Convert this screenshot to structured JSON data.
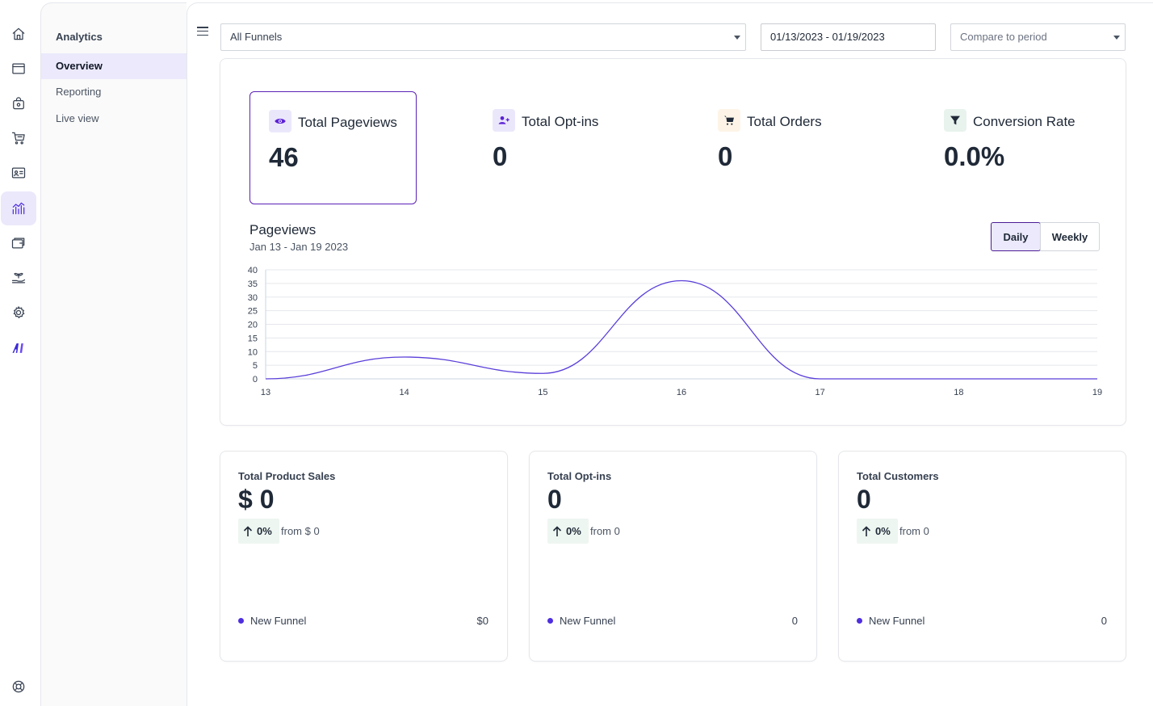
{
  "colors": {
    "accent": "#4f2ee0",
    "series": "#5b3fd9",
    "pill_bg": "#eef6f1"
  },
  "rail": {
    "items": [
      {
        "icon": "home-icon"
      },
      {
        "icon": "browser-icon"
      },
      {
        "icon": "bag-icon"
      },
      {
        "icon": "cart-icon"
      },
      {
        "icon": "contact-card-icon"
      },
      {
        "icon": "analytics-icon",
        "active": true
      },
      {
        "icon": "wallet-icon"
      },
      {
        "icon": "plant-hand-icon"
      },
      {
        "icon": "gear-icon"
      },
      {
        "icon": "ai-logo-icon"
      }
    ],
    "help_icon": "lifebuoy-icon"
  },
  "subnav": {
    "title": "Analytics",
    "items": [
      {
        "label": "Overview",
        "active": true
      },
      {
        "label": "Reporting"
      },
      {
        "label": "Live view"
      }
    ]
  },
  "filters": {
    "funnel": "All Funnels",
    "date_range": "01/13/2023 - 01/19/2023",
    "compare": "Compare to period"
  },
  "stats": [
    {
      "label": "Total Pageviews",
      "value": "46",
      "icon": "eye-icon"
    },
    {
      "label": "Total Opt-ins",
      "value": "0",
      "icon": "user-plus-icon"
    },
    {
      "label": "Total Orders",
      "value": "0",
      "icon": "cart-icon"
    },
    {
      "label": "Conversion Rate",
      "value": "0.0%",
      "icon": "funnel-icon"
    }
  ],
  "chart": {
    "title": "Pageviews",
    "subtitle": "Jan 13 - Jan 19 2023",
    "toggle": {
      "daily": "Daily",
      "weekly": "Weekly"
    }
  },
  "chart_data": {
    "type": "line",
    "x": [
      "13",
      "14",
      "15",
      "16",
      "17",
      "18",
      "19"
    ],
    "series": [
      {
        "values": [
          0,
          8,
          2,
          36,
          0,
          0,
          0
        ]
      }
    ],
    "yticks": [
      0,
      5,
      10,
      15,
      20,
      25,
      30,
      35,
      40
    ],
    "ylim": [
      0,
      40
    ],
    "grid": true
  },
  "cards": [
    {
      "title": "Total Product Sales",
      "value": "$ 0",
      "change": "0%",
      "from": "from $ 0",
      "legend_name": "New Funnel",
      "legend_value": "$0"
    },
    {
      "title": "Total Opt-ins",
      "value": "0",
      "change": "0%",
      "from": "from 0",
      "legend_name": "New Funnel",
      "legend_value": "0"
    },
    {
      "title": "Total Customers",
      "value": "0",
      "change": "0%",
      "from": "from 0",
      "legend_name": "New Funnel",
      "legend_value": "0"
    }
  ]
}
